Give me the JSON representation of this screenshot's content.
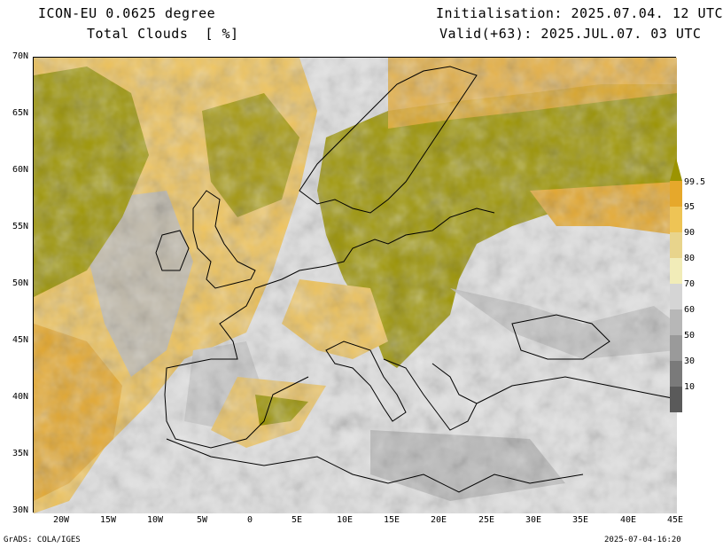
{
  "header": {
    "model_line": "ICON-EU 0.0625 degree",
    "variable_line": "Total Clouds  [ %]",
    "init_line": "Initialisation: 2025.07.04. 12 UTC",
    "valid_line": "Valid(+63): 2025.JUL.07. 03 UTC"
  },
  "footer": {
    "credit": "GrADS: COLA/IGES",
    "timestamp": "2025-07-04-16:20"
  },
  "axes": {
    "lat_labels": [
      "70N",
      "65N",
      "60N",
      "55N",
      "50N",
      "45N",
      "40N",
      "35N",
      "30N"
    ],
    "lon_labels": [
      "20W",
      "15W",
      "10W",
      "5W",
      "0",
      "5E",
      "10E",
      "15E",
      "20E",
      "25E",
      "30E",
      "35E",
      "40E",
      "45E"
    ]
  },
  "colorbar": {
    "labels": [
      "99.5",
      "95",
      "90",
      "80",
      "70",
      "60",
      "50",
      "30",
      "10"
    ],
    "colors": [
      "#9c9400",
      "#e6a82b",
      "#eec455",
      "#e8d48c",
      "#f1ecb8",
      "#d5d5d5",
      "#b7b7b7",
      "#9a9a9a",
      "#7a7a7a",
      "#5a5a5a"
    ]
  },
  "colors": {
    "no_cloud": "#e2e2e2",
    "overcast": "#9c9400",
    "high_cloud": "#e6a82b",
    "coast": "#000000"
  }
}
